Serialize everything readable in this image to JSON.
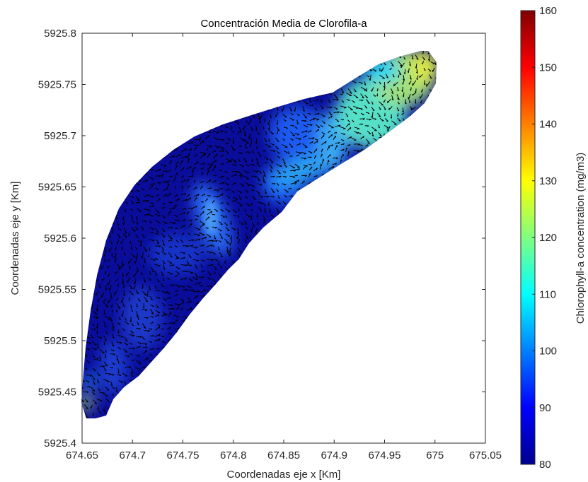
{
  "chart_data": {
    "type": "heatmap",
    "title": "Concentración Media de Clorofila-a",
    "xlabel": "Coordenadas eje x [Km]",
    "ylabel": "Coordenadas eje y [Km]",
    "xlim": [
      674.65,
      675.05
    ],
    "ylim": [
      5925.4,
      5925.8
    ],
    "xticks": [
      674.65,
      674.7,
      674.75,
      674.8,
      674.85,
      674.9,
      674.95,
      675,
      675.05
    ],
    "xtick_labels": [
      "674.65",
      "674.7",
      "674.75",
      "674.8",
      "674.85",
      "674.9",
      "674.95",
      "675",
      "675.05"
    ],
    "yticks": [
      5925.4,
      5925.45,
      5925.5,
      5925.55,
      5925.6,
      5925.65,
      5925.7,
      5925.75,
      5925.8
    ],
    "ytick_labels": [
      "5925.4",
      "5925.45",
      "5925.5",
      "5925.55",
      "5925.6",
      "5925.65",
      "5925.7",
      "5925.75",
      "5925.8"
    ],
    "grid": false,
    "overlay": "velocity vectors (quiver)",
    "colormap": "jet",
    "colorbar": {
      "label": "Chlorophyll-a concentration (mg/m3)",
      "range": [
        80,
        160
      ],
      "ticks": [
        80,
        90,
        100,
        110,
        120,
        130,
        140,
        150,
        160
      ],
      "tick_labels": [
        "80",
        "90",
        "100",
        "110",
        "120",
        "130",
        "140",
        "150",
        "160"
      ]
    },
    "field_samples": [
      {
        "x": 674.66,
        "y": 5925.42,
        "value": 96
      },
      {
        "x": 674.655,
        "y": 5925.445,
        "value": 122
      },
      {
        "x": 674.67,
        "y": 5925.47,
        "value": 84
      },
      {
        "x": 674.69,
        "y": 5925.52,
        "value": 82
      },
      {
        "x": 674.7,
        "y": 5925.56,
        "value": 86
      },
      {
        "x": 674.73,
        "y": 5925.6,
        "value": 82
      },
      {
        "x": 674.77,
        "y": 5925.64,
        "value": 86
      },
      {
        "x": 674.78,
        "y": 5925.61,
        "value": 96
      },
      {
        "x": 674.8,
        "y": 5925.59,
        "value": 84
      },
      {
        "x": 674.8,
        "y": 5925.67,
        "value": 83
      },
      {
        "x": 674.86,
        "y": 5925.68,
        "value": 94
      },
      {
        "x": 674.84,
        "y": 5925.64,
        "value": 92
      },
      {
        "x": 674.88,
        "y": 5925.72,
        "value": 98
      },
      {
        "x": 674.89,
        "y": 5925.66,
        "value": 108
      },
      {
        "x": 674.87,
        "y": 5925.7,
        "value": 100
      },
      {
        "x": 674.91,
        "y": 5925.72,
        "value": 112
      },
      {
        "x": 674.93,
        "y": 5925.74,
        "value": 116
      },
      {
        "x": 674.95,
        "y": 5925.73,
        "value": 118
      },
      {
        "x": 674.96,
        "y": 5925.76,
        "value": 120
      },
      {
        "x": 674.99,
        "y": 5925.77,
        "value": 126
      },
      {
        "x": 675.0,
        "y": 5925.76,
        "value": 128
      },
      {
        "x": 674.96,
        "y": 5925.77,
        "value": 108
      },
      {
        "x": 674.9,
        "y": 5925.74,
        "value": 112
      }
    ]
  },
  "colors": {
    "axis": "#262626",
    "background": "#ffffff",
    "vectors": "#000000"
  }
}
